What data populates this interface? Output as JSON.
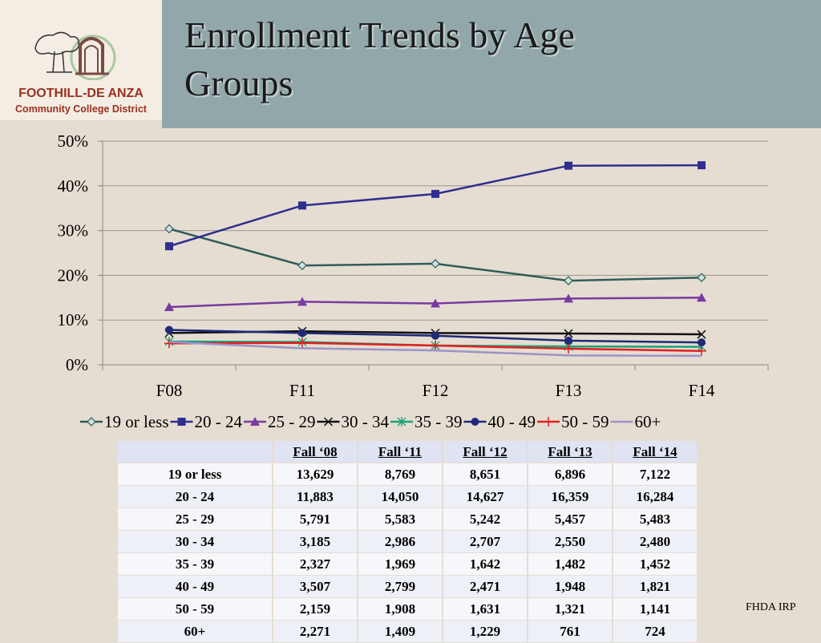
{
  "header": {
    "title_line1": "Enrollment Trends by Age",
    "title_line2": "Groups",
    "org_name": "FOOTHILL-DE ANZA",
    "org_sub": "Community College District"
  },
  "footer": {
    "note": "FHDA IRP"
  },
  "colors": {
    "background": "#e6ddd2",
    "title_band": "#92a7aa",
    "brand": "#9b3020"
  },
  "chart_data": {
    "type": "line",
    "title": "",
    "xlabel": "",
    "ylabel": "",
    "categories": [
      "F08",
      "F11",
      "F12",
      "F13",
      "F14"
    ],
    "ylim": [
      0,
      50
    ],
    "yticks": [
      0,
      10,
      20,
      30,
      40,
      50
    ],
    "ytick_labels": [
      "0%",
      "10%",
      "20%",
      "30%",
      "40%",
      "50%"
    ],
    "grid": true,
    "legend": "bottom",
    "series": [
      {
        "name": "19 or less",
        "color": "#2e5c5a",
        "marker": "diamond",
        "values": [
          30.4,
          22.2,
          22.6,
          18.8,
          19.5
        ]
      },
      {
        "name": "20 - 24",
        "color": "#2e2e8f",
        "marker": "square",
        "values": [
          26.5,
          35.6,
          38.2,
          44.5,
          44.6
        ]
      },
      {
        "name": "25 - 29",
        "color": "#7a3aa0",
        "marker": "triangle",
        "values": [
          12.9,
          14.1,
          13.7,
          14.8,
          15.0
        ]
      },
      {
        "name": "30 - 34",
        "color": "#111111",
        "marker": "x",
        "values": [
          7.1,
          7.5,
          7.1,
          7.0,
          6.8
        ]
      },
      {
        "name": "35 - 39",
        "color": "#1aa37a",
        "marker": "star",
        "values": [
          5.2,
          5.1,
          4.3,
          4.1,
          4.0
        ]
      },
      {
        "name": "40 - 49",
        "color": "#1f2a78",
        "marker": "circle",
        "values": [
          7.8,
          7.1,
          6.5,
          5.4,
          5.0
        ]
      },
      {
        "name": "50 - 59",
        "color": "#e02020",
        "marker": "plus",
        "values": [
          4.8,
          4.9,
          4.3,
          3.6,
          3.1
        ]
      },
      {
        "name": "60+",
        "color": "#9a94c8",
        "marker": "none",
        "values": [
          5.1,
          3.7,
          3.2,
          2.1,
          2.0
        ]
      }
    ]
  },
  "table": {
    "headers": [
      "",
      "Fall ‘08",
      "Fall ‘11",
      "Fall ‘12",
      "Fall ‘13",
      "Fall ‘14"
    ],
    "rows": [
      [
        "19 or less",
        "13,629",
        "8,769",
        "8,651",
        "6,896",
        "7,122"
      ],
      [
        "20 - 24",
        "11,883",
        "14,050",
        "14,627",
        "16,359",
        "16,284"
      ],
      [
        "25 - 29",
        "5,791",
        "5,583",
        "5,242",
        "5,457",
        "5,483"
      ],
      [
        "30 - 34",
        "3,185",
        "2,986",
        "2,707",
        "2,550",
        "2,480"
      ],
      [
        "35 - 39",
        "2,327",
        "1,969",
        "1,642",
        "1,482",
        "1,452"
      ],
      [
        "40 - 49",
        "3,507",
        "2,799",
        "2,471",
        "1,948",
        "1,821"
      ],
      [
        "50 - 59",
        "2,159",
        "1,908",
        "1,631",
        "1,321",
        "1,141"
      ],
      [
        "60+",
        "2,271",
        "1,409",
        "1,229",
        "761",
        "724"
      ]
    ]
  }
}
